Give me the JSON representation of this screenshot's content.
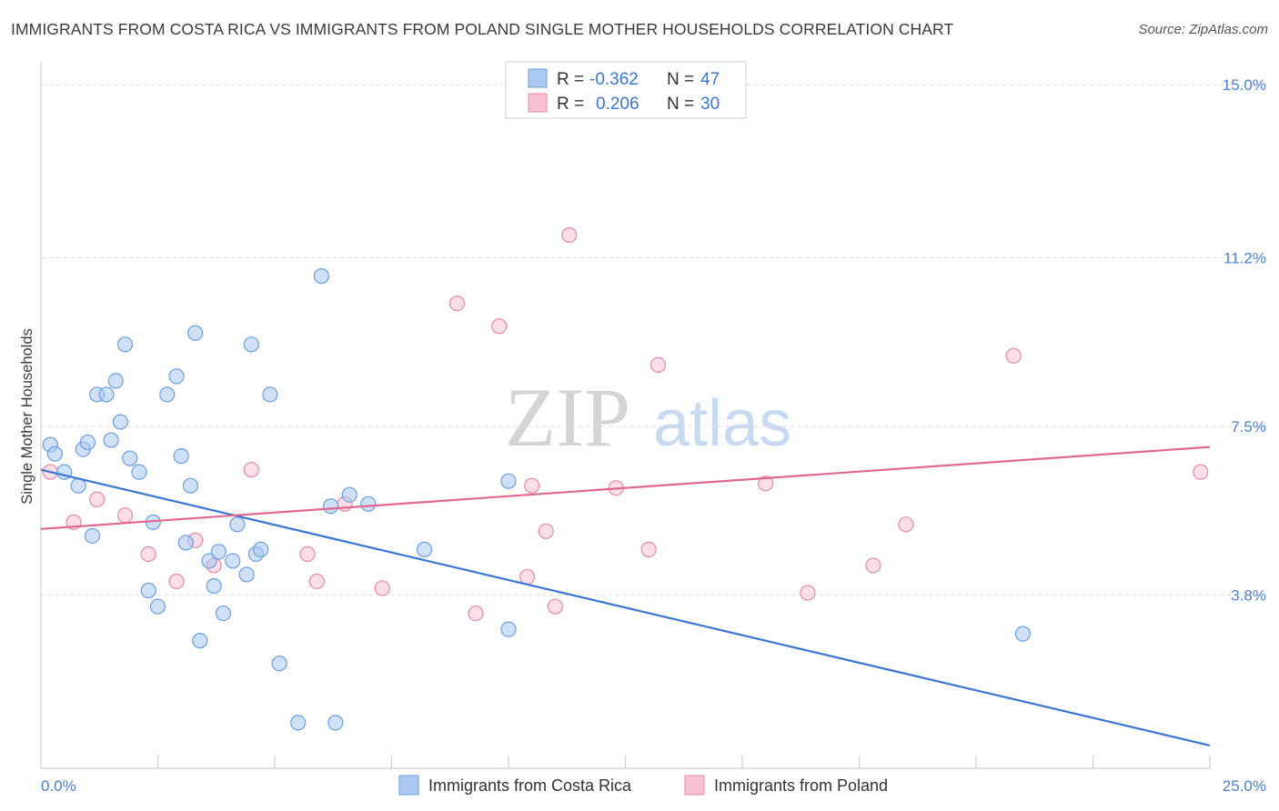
{
  "chart_data": {
    "type": "scatter",
    "title": "IMMIGRANTS FROM COSTA RICA VS IMMIGRANTS FROM POLAND SINGLE MOTHER HOUSEHOLDS CORRELATION CHART",
    "source": "Source: ZipAtlas.com",
    "ylabel": "Single Mother Households",
    "xlabel": "",
    "xlim": [
      0,
      25
    ],
    "ylim": [
      0,
      15.5
    ],
    "x_tick_labels": {
      "left": "0.0%",
      "right": "25.0%"
    },
    "y_ticks": [
      {
        "value": 3.8,
        "label": "3.8%"
      },
      {
        "value": 7.5,
        "label": "7.5%"
      },
      {
        "value": 11.2,
        "label": "11.2%"
      },
      {
        "value": 15.0,
        "label": "15.0%"
      }
    ],
    "watermark": {
      "part1": "ZIP",
      "part2": "atlas"
    },
    "colors": {
      "costa_rica_fill": "#aac8f0",
      "costa_rica_stroke": "#6a9fe0",
      "costa_rica_line": "#3a76d4",
      "poland_fill": "#f7c3d3",
      "poland_stroke": "#e68aa8",
      "poland_line": "#e0678f",
      "tick_text": "#4a7fd0"
    },
    "legend": {
      "r_label": "R =",
      "n_label": "N =",
      "rows": [
        {
          "series": "costa_rica",
          "r": "-0.362",
          "n": "47"
        },
        {
          "series": "poland",
          "r": "0.206",
          "n": "30"
        }
      ]
    },
    "series": [
      {
        "key": "costa_rica",
        "name": "Immigrants from Costa Rica",
        "trend": {
          "x0": 0,
          "y0": 6.55,
          "x1": 25,
          "y1": 0.5
        },
        "points": [
          [
            0.2,
            7.1
          ],
          [
            0.3,
            6.9
          ],
          [
            0.5,
            6.5
          ],
          [
            0.8,
            6.2
          ],
          [
            0.9,
            7.0
          ],
          [
            1.0,
            7.15
          ],
          [
            1.1,
            5.1
          ],
          [
            1.2,
            8.2
          ],
          [
            1.4,
            8.2
          ],
          [
            1.5,
            7.2
          ],
          [
            1.6,
            8.5
          ],
          [
            1.7,
            7.6
          ],
          [
            1.8,
            9.3
          ],
          [
            1.9,
            6.8
          ],
          [
            2.1,
            6.5
          ],
          [
            2.3,
            3.9
          ],
          [
            2.4,
            5.4
          ],
          [
            2.5,
            3.55
          ],
          [
            2.7,
            8.2
          ],
          [
            2.9,
            8.6
          ],
          [
            3.0,
            6.85
          ],
          [
            3.1,
            4.95
          ],
          [
            3.2,
            6.2
          ],
          [
            3.3,
            9.55
          ],
          [
            3.4,
            2.8
          ],
          [
            3.6,
            4.55
          ],
          [
            3.7,
            4.0
          ],
          [
            3.8,
            4.75
          ],
          [
            3.9,
            3.4
          ],
          [
            4.1,
            4.55
          ],
          [
            4.2,
            5.35
          ],
          [
            4.4,
            4.25
          ],
          [
            4.5,
            9.3
          ],
          [
            4.6,
            4.7
          ],
          [
            4.7,
            4.8
          ],
          [
            4.9,
            8.2
          ],
          [
            5.1,
            2.3
          ],
          [
            5.5,
            1.0
          ],
          [
            6.0,
            10.8
          ],
          [
            6.2,
            5.75
          ],
          [
            6.3,
            1.0
          ],
          [
            6.6,
            6.0
          ],
          [
            7.0,
            5.8
          ],
          [
            8.2,
            4.8
          ],
          [
            10.0,
            3.05
          ],
          [
            10.0,
            6.3
          ],
          [
            21.0,
            2.95
          ]
        ]
      },
      {
        "key": "poland",
        "name": "Immigrants from Poland",
        "trend": {
          "x0": 0,
          "y0": 5.25,
          "x1": 25,
          "y1": 7.05
        },
        "points": [
          [
            0.2,
            6.5
          ],
          [
            0.7,
            5.4
          ],
          [
            1.2,
            5.9
          ],
          [
            1.8,
            5.55
          ],
          [
            2.3,
            4.7
          ],
          [
            2.9,
            4.1
          ],
          [
            3.3,
            5.0
          ],
          [
            3.7,
            4.45
          ],
          [
            4.5,
            6.55
          ],
          [
            5.7,
            4.7
          ],
          [
            5.9,
            4.1
          ],
          [
            6.5,
            5.8
          ],
          [
            7.3,
            3.95
          ],
          [
            8.9,
            10.2
          ],
          [
            9.3,
            3.4
          ],
          [
            9.8,
            9.7
          ],
          [
            10.4,
            4.2
          ],
          [
            10.5,
            6.2
          ],
          [
            10.8,
            5.2
          ],
          [
            11.0,
            3.55
          ],
          [
            11.3,
            11.7
          ],
          [
            12.3,
            6.15
          ],
          [
            13.0,
            4.8
          ],
          [
            13.2,
            8.85
          ],
          [
            15.5,
            6.25
          ],
          [
            16.4,
            3.85
          ],
          [
            17.8,
            4.45
          ],
          [
            18.5,
            5.35
          ],
          [
            20.8,
            9.05
          ],
          [
            24.8,
            6.5
          ]
        ]
      }
    ]
  }
}
